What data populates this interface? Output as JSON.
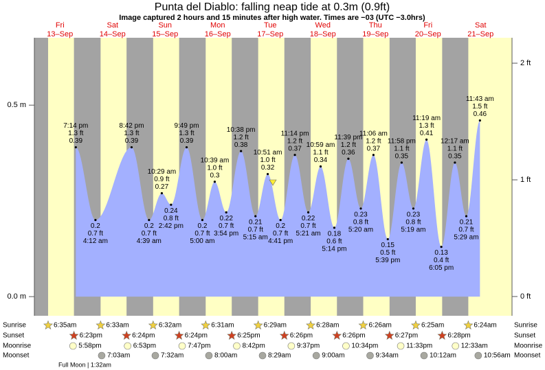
{
  "chart_data": {
    "type": "area",
    "title": "Punta del Diablo: falling  neap tide at 0.3m (0.9ft)",
    "subtitle": "Image captured 2 hours and 15 minutes after high water. Times are −03 (UTC −3.0hrs)",
    "color": "#a3b0ff",
    "ylim": [
      -0.05,
      0.676
    ],
    "yticks": [
      {
        "value": 0,
        "label": "0.0 m"
      },
      {
        "value": 0.5,
        "label": "0.5 m"
      }
    ],
    "y2lim": [
      -0.165,
      2.218
    ],
    "y2ticks": [
      {
        "value": 0,
        "label": "0 ft"
      },
      {
        "value": 1,
        "label": "1 ft"
      },
      {
        "value": 2,
        "label": "2 ft"
      }
    ],
    "row_labels": [
      "Sunrise",
      "Sunset",
      "Moonrise",
      "Moonset"
    ],
    "footer": "Full Moon | 1:32am",
    "days": [
      {
        "weekday": "Fri",
        "date": "13–Sep",
        "sunrise": "6:35am",
        "sunset": "6:23pm",
        "moonrise": "5:58pm",
        "moonset": null,
        "tides": [
          {
            "time": "7:14 pm",
            "ft": {
              "value": 1.3,
              "label": "1.3 ft"
            },
            "m": 0.39
          }
        ]
      },
      {
        "weekday": "Sat",
        "date": "14–Sep",
        "sunrise": "6:33am",
        "sunset": "6:24pm",
        "moonrise": "6:53pm",
        "moonset": "7:03am",
        "tides": [
          {
            "time": "4:12 am",
            "ft": {
              "value": 0.7,
              "label": "0.7 ft"
            },
            "m": 0.2
          },
          {
            "time": "8:42 pm",
            "ft": {
              "value": 1.3,
              "label": "1.3 ft"
            },
            "m": 0.39
          }
        ]
      },
      {
        "weekday": "Sun",
        "date": "15–Sep",
        "sunrise": "6:32am",
        "sunset": "6:24pm",
        "moonrise": "7:47pm",
        "moonset": "7:32am",
        "tides": [
          {
            "time": "4:39 am",
            "ft": {
              "value": 0.7,
              "label": "0.7 ft"
            },
            "m": 0.2
          },
          {
            "time": "10:29 am",
            "ft": {
              "value": 0.9,
              "label": "0.9 ft"
            },
            "m": 0.27
          },
          {
            "time": "2:42 pm",
            "ft": {
              "value": 0.8,
              "label": "0.8 ft"
            },
            "m": 0.24
          },
          {
            "time": "9:49 pm",
            "ft": {
              "value": 1.3,
              "label": "1.3 ft"
            },
            "m": 0.39
          }
        ]
      },
      {
        "weekday": "Mon",
        "date": "16–Sep",
        "sunrise": "6:31am",
        "sunset": "6:25pm",
        "moonrise": "8:42pm",
        "moonset": "8:00am",
        "tides": [
          {
            "time": "5:00 am",
            "ft": {
              "value": 0.7,
              "label": "0.7 ft"
            },
            "m": 0.2
          },
          {
            "time": "10:39 am",
            "ft": {
              "value": 1.0,
              "label": "1.0 ft"
            },
            "m": 0.3
          },
          {
            "time": "3:54 pm",
            "ft": {
              "value": 0.7,
              "label": "0.7 ft"
            },
            "m": 0.22
          },
          {
            "time": "10:38 pm",
            "ft": {
              "value": 1.2,
              "label": "1.2 ft"
            },
            "m": 0.38
          }
        ]
      },
      {
        "weekday": "Tue",
        "date": "17–Sep",
        "sunrise": "6:29am",
        "sunset": "6:26pm",
        "moonrise": "9:37pm",
        "moonset": "8:29am",
        "tides": [
          {
            "time": "5:15 am",
            "ft": {
              "value": 0.7,
              "label": "0.7 ft"
            },
            "m": 0.21
          },
          {
            "time": "10:51 am",
            "ft": {
              "value": 1.0,
              "label": "1.0 ft"
            },
            "m": 0.32
          },
          {
            "time": "4:41 pm",
            "ft": {
              "value": 0.7,
              "label": "0.7 ft"
            },
            "m": 0.2
          },
          {
            "time": "11:14 pm",
            "ft": {
              "value": 1.2,
              "label": "1.2 ft"
            },
            "m": 0.37
          }
        ]
      },
      {
        "weekday": "Wed",
        "date": "18–Sep",
        "sunrise": "6:28am",
        "sunset": "6:26pm",
        "moonrise": "10:34pm",
        "moonset": "9:00am",
        "tides": [
          {
            "time": "5:21 am",
            "ft": {
              "value": 0.7,
              "label": "0.7 ft"
            },
            "m": 0.22
          },
          {
            "time": "10:59 am",
            "ft": {
              "value": 1.1,
              "label": "1.1 ft"
            },
            "m": 0.34
          },
          {
            "time": "5:14 pm",
            "ft": {
              "value": 0.6,
              "label": "0.6 ft"
            },
            "m": 0.18
          },
          {
            "time": "11:39 pm",
            "ft": {
              "value": 1.2,
              "label": "1.2 ft"
            },
            "m": 0.36
          }
        ]
      },
      {
        "weekday": "Thu",
        "date": "19–Sep",
        "sunrise": "6:26am",
        "sunset": "6:27pm",
        "moonrise": "11:33pm",
        "moonset": "9:34am",
        "tides": [
          {
            "time": "5:20 am",
            "ft": {
              "value": 0.8,
              "label": "0.8 ft"
            },
            "m": 0.23
          },
          {
            "time": "11:06 am",
            "ft": {
              "value": 1.2,
              "label": "1.2 ft"
            },
            "m": 0.37
          },
          {
            "time": "5:39 pm",
            "ft": {
              "value": 0.5,
              "label": "0.5 ft"
            },
            "m": 0.15
          },
          {
            "time": "11:58 pm",
            "ft": {
              "value": 1.1,
              "label": "1.1 ft"
            },
            "m": 0.35
          }
        ]
      },
      {
        "weekday": "Fri",
        "date": "20–Sep",
        "sunrise": "6:25am",
        "sunset": "6:28pm",
        "moonrise": null,
        "moonset": "10:12am",
        "tides": [
          {
            "time": "5:19 am",
            "ft": {
              "value": 0.8,
              "label": "0.8 ft"
            },
            "m": 0.23
          },
          {
            "time": "11:19 am",
            "ft": {
              "value": 1.3,
              "label": "1.3 ft"
            },
            "m": 0.41
          },
          {
            "time": "6:05 pm",
            "ft": {
              "value": 0.4,
              "label": "0.4 ft"
            },
            "m": 0.13
          }
        ]
      },
      {
        "weekday": "Sat",
        "date": "21–Sep",
        "sunrise": "6:24am",
        "sunset": null,
        "moonrise": "12:33am",
        "moonset": "10:56am",
        "tides": [
          {
            "time": "12:17 am",
            "ft": {
              "value": 1.1,
              "label": "1.1 ft"
            },
            "m": 0.35
          },
          {
            "time": "5:29 am",
            "ft": {
              "value": 0.7,
              "label": "0.7 ft"
            },
            "m": 0.21
          },
          {
            "time": "11:43 am",
            "ft": {
              "value": 1.5,
              "label": "1.5 ft"
            },
            "m": 0.46
          }
        ]
      }
    ]
  }
}
